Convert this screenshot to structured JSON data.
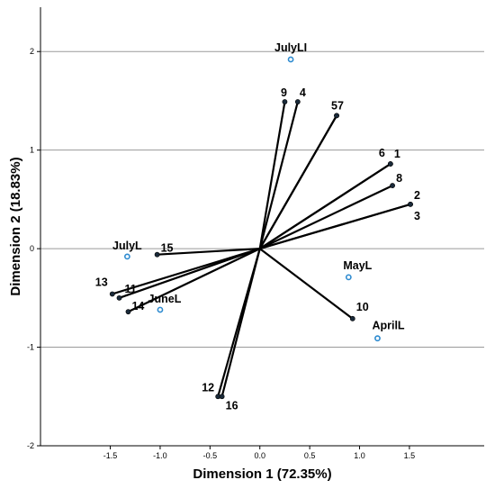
{
  "chart_data": {
    "type": "scatter",
    "subtype": "biplot",
    "xlabel": "Dimension 1 (72.35%)",
    "ylabel": "Dimension 2 (18.83%)",
    "xlim": [
      -2.2,
      2.25
    ],
    "ylim": [
      -2.0,
      2.45
    ],
    "x_ticks": [
      -1.5,
      -1.0,
      -0.5,
      0.0,
      0.5,
      1.0,
      1.5
    ],
    "x_tick_labels": [
      "-1.5",
      "-1.0",
      "-0.5",
      "0.0",
      "0.5",
      "1.0",
      "1.5"
    ],
    "y_ticks": [
      -2,
      -1,
      0,
      1,
      2
    ],
    "y_tick_labels": [
      "-2",
      "-1",
      "0",
      "1",
      "2"
    ],
    "horizontal_gridlines": [
      -1,
      0,
      1,
      2
    ],
    "origin": [
      0,
      0
    ],
    "vectors": [
      {
        "label": "1",
        "x": 1.31,
        "y": 0.86
      },
      {
        "label": "2",
        "x": 1.51,
        "y": 0.45
      },
      {
        "label": "3",
        "x": 1.51,
        "y": 0.45
      },
      {
        "label": "4",
        "x": 0.38,
        "y": 1.49
      },
      {
        "label": "5",
        "x": 0.77,
        "y": 1.35
      },
      {
        "label": "6",
        "x": 1.31,
        "y": 0.86
      },
      {
        "label": "7",
        "x": 0.77,
        "y": 1.35
      },
      {
        "label": "8",
        "x": 1.33,
        "y": 0.64
      },
      {
        "label": "9",
        "x": 0.25,
        "y": 1.49
      },
      {
        "label": "10",
        "x": 0.93,
        "y": -0.71
      },
      {
        "label": "11",
        "x": -1.41,
        "y": -0.5
      },
      {
        "label": "12",
        "x": -0.42,
        "y": -1.5
      },
      {
        "label": "13",
        "x": -1.48,
        "y": -0.46
      },
      {
        "label": "14",
        "x": -1.32,
        "y": -0.64
      },
      {
        "label": "15",
        "x": -1.03,
        "y": -0.06
      },
      {
        "label": "16",
        "x": -0.38,
        "y": -1.5
      }
    ],
    "vector_label_groups": [
      {
        "text": "1",
        "anchor": 1
      },
      {
        "text": "2",
        "anchor": 2
      },
      {
        "text": "3",
        "anchor": 3
      },
      {
        "text": "4",
        "anchor": 4
      },
      {
        "text": "57",
        "anchor": 5
      },
      {
        "text": "6",
        "anchor": 6
      },
      {
        "text": "8",
        "anchor": 8
      },
      {
        "text": "9",
        "anchor": 9
      },
      {
        "text": "10",
        "anchor": 10
      },
      {
        "text": "11",
        "anchor": 11
      },
      {
        "text": "12",
        "anchor": 12
      },
      {
        "text": "13",
        "anchor": 13
      },
      {
        "text": "14",
        "anchor": 14
      },
      {
        "text": "15",
        "anchor": 15
      },
      {
        "text": "16",
        "anchor": 16
      }
    ],
    "categories": [
      {
        "label": "JulyLI",
        "x": 0.31,
        "y": 1.92
      },
      {
        "label": "JulyL",
        "x": -1.33,
        "y": -0.08
      },
      {
        "label": "JuneL",
        "x": -1.0,
        "y": -0.62
      },
      {
        "label": "MayL",
        "x": 0.89,
        "y": -0.29
      },
      {
        "label": "AprilL",
        "x": 1.18,
        "y": -0.91
      }
    ],
    "colors": {
      "vector": "#000000",
      "category_marker": "#2e8bd0",
      "gridline": "#9a9a9a"
    },
    "grid": "horizontal",
    "legend": "none"
  }
}
